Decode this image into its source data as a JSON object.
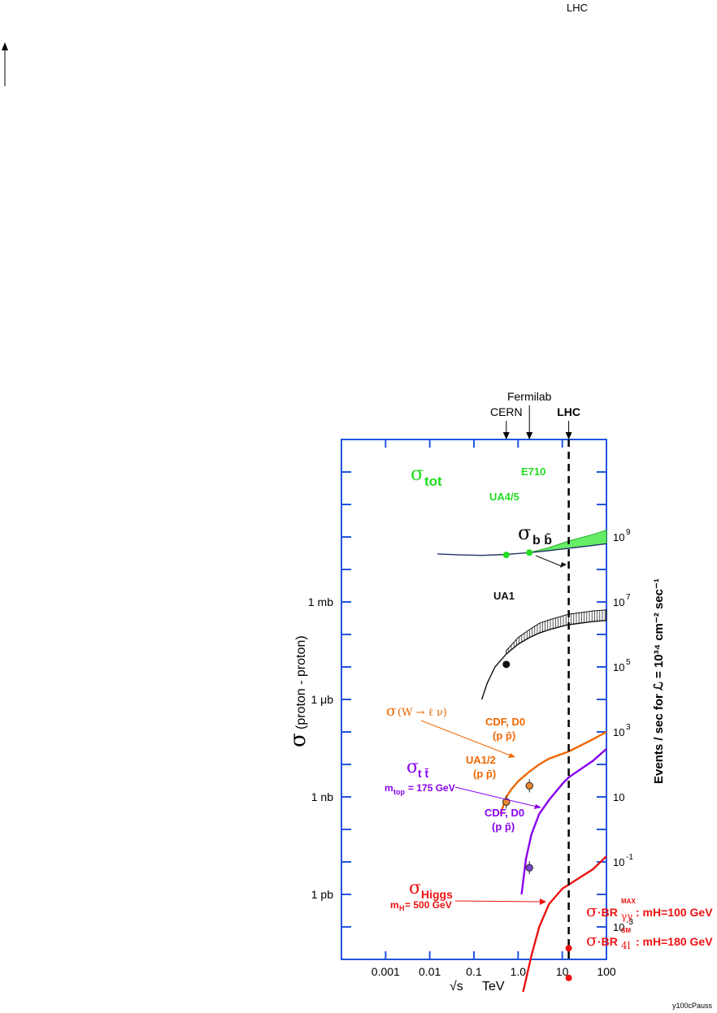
{
  "header_tag": "LHC",
  "footer_tag": "y100cPauss",
  "chart_data": {
    "type": "line",
    "x_scale": "log",
    "y_scale": "log",
    "xlabel": "√s   TeV",
    "xlabel_root": "√s",
    "xlabel_unit": "TeV",
    "ylabel_left": "σ (proton - proton)",
    "ylabel_left_sigma": "σ",
    "ylabel_left_rest": "(proton - proton)",
    "ylabel_right": "Events / sec for ℒ = 10³⁴ cm⁻² sec⁻¹",
    "xlim": [
      0.0001,
      100
    ],
    "ylim_events": [
      0.0001,
      1000000000000
    ],
    "x_ticks": [
      {
        "value": 0.001,
        "label": "0.001"
      },
      {
        "value": 0.01,
        "label": "0.01"
      },
      {
        "value": 0.1,
        "label": "0.1"
      },
      {
        "value": 1,
        "label": "1.0"
      },
      {
        "value": 10,
        "label": "10"
      },
      {
        "value": 100,
        "label": "100"
      }
    ],
    "left_ticks": [
      {
        "value": 10000000,
        "label": "1 mb"
      },
      {
        "value": 10000,
        "label": "1 μb"
      },
      {
        "value": 10,
        "label": "1 nb"
      },
      {
        "value": 0.01,
        "label": "1 pb"
      }
    ],
    "right_ticks": [
      {
        "value": 1000000000,
        "base": "10",
        "exp": "9"
      },
      {
        "value": 10000000,
        "base": "10",
        "exp": "7"
      },
      {
        "value": 100000,
        "base": "10",
        "exp": "5"
      },
      {
        "value": 1000,
        "base": "10",
        "exp": "3"
      },
      {
        "value": 10,
        "base": "10",
        "exp": ""
      },
      {
        "value": 0.1,
        "base": "10",
        "exp": "-1"
      },
      {
        "value": 0.001,
        "base": "10",
        "exp": "-3"
      }
    ],
    "machines": [
      {
        "label": "CERN",
        "x": 0.54
      },
      {
        "label": "Fermilab",
        "x": 1.8
      },
      {
        "label": "LHC",
        "x": 14
      }
    ],
    "lhc_x": 14,
    "series": [
      {
        "name": "σ_tot",
        "label_main": "σ",
        "label_sub": "tot",
        "color": "#22dd22",
        "points": [
          [
            0.015,
            300000000
          ],
          [
            0.05,
            280000000
          ],
          [
            0.15,
            270000000
          ],
          [
            0.54,
            290000000
          ],
          [
            1.8,
            330000000
          ],
          [
            5,
            380000000
          ],
          [
            14,
            450000000
          ],
          [
            50,
            550000000
          ],
          [
            100,
            620000000
          ]
        ],
        "band_upper": [
          [
            1.8,
            330000000
          ],
          [
            5,
            470000000
          ],
          [
            14,
            750000000
          ],
          [
            50,
            1200000000
          ],
          [
            100,
            1600000000
          ]
        ]
      },
      {
        "name": "σ_bb",
        "label_main": "σ",
        "label_sub": "b b̄",
        "color": "#111111",
        "points": [
          [
            0.15,
            10000
          ],
          [
            0.2,
            32000
          ],
          [
            0.3,
            100000
          ],
          [
            0.54,
            250000
          ],
          [
            1,
            500000
          ],
          [
            1.8,
            800000
          ],
          [
            3,
            1100000
          ],
          [
            5,
            1400000
          ],
          [
            10,
            1800000
          ],
          [
            14,
            2000000
          ],
          [
            50,
            2500000
          ],
          [
            100,
            2700000
          ]
        ],
        "band_upper": [
          [
            0.54,
            320000
          ],
          [
            1,
            800000
          ],
          [
            1.8,
            1400000
          ],
          [
            3,
            2200000
          ],
          [
            5,
            2800000
          ],
          [
            10,
            3700000
          ],
          [
            14,
            4200000
          ],
          [
            50,
            5300000
          ],
          [
            100,
            5700000
          ]
        ]
      },
      {
        "name": "σ(W → ℓν)",
        "label_main": "σ",
        "label_rest": "(W → ℓ ν)",
        "color": "#ee6600",
        "points": [
          [
            0.4,
            3
          ],
          [
            0.54,
            10
          ],
          [
            0.7,
            17
          ],
          [
            1,
            30
          ],
          [
            1.8,
            60
          ],
          [
            3,
            100
          ],
          [
            5,
            150
          ],
          [
            14,
            250
          ],
          [
            50,
            600
          ],
          [
            100,
            1000
          ]
        ]
      },
      {
        "name": "σ_tt",
        "label_main": "σ",
        "label_sub": "t t̄",
        "color": "#8800ee",
        "points": [
          [
            1.2,
            0.01
          ],
          [
            1.5,
            0.12
          ],
          [
            2,
            0.7
          ],
          [
            3,
            3
          ],
          [
            5,
            8
          ],
          [
            10,
            25
          ],
          [
            14,
            40
          ],
          [
            50,
            130
          ],
          [
            100,
            300
          ]
        ]
      },
      {
        "name": "σ_Higgs",
        "label_main": "σ",
        "label_sub": "Higgs",
        "color": "#ee1111",
        "points": [
          [
            1.3,
            1e-05
          ],
          [
            2,
            0.00013
          ],
          [
            3,
            0.001
          ],
          [
            5,
            0.005
          ],
          [
            10,
            0.015
          ],
          [
            14,
            0.02
          ],
          [
            50,
            0.06
          ],
          [
            100,
            0.15
          ]
        ]
      }
    ],
    "data_points": [
      {
        "label": "UA4/5",
        "x": 0.54,
        "y": 280000000,
        "color": "#22dd22"
      },
      {
        "label": "E710",
        "x": 1.8,
        "y": 330000000,
        "color": "#22dd22"
      },
      {
        "label": "UA1",
        "x": 0.54,
        "y": 120000,
        "color": "#111111"
      },
      {
        "label": "UA1/2 (p p̄)",
        "x": 0.54,
        "y": 7,
        "color": "#ee6600"
      },
      {
        "label": "CDF, D0 (p p̄)",
        "x": 1.8,
        "y": 22,
        "color": "#ee6600"
      },
      {
        "label": "CDF, D0 (p p̄)",
        "x": 1.8,
        "y": 0.066,
        "color": "#8800ee"
      },
      {
        "label": "σ·BR γγ^MAX : mH=100 GeV",
        "x": 14,
        "y": 0.00022,
        "color": "#ee1111"
      },
      {
        "label": "σ·BR 4l^SM : mH=180 GeV",
        "x": 14,
        "y": 2.7e-05,
        "color": "#ee1111"
      }
    ],
    "annotations": {
      "ua45": "UA4/5",
      "e710": "E710",
      "ua1": "UA1",
      "cdf_w_1": "CDF, D0",
      "cdf_w_2": "(p p̄)",
      "ua12_1": "UA1/2",
      "ua12_2": "(p p̄)",
      "mtop": "= 175 GeV",
      "mtop_m": "m",
      "mtop_sub": "top",
      "cdf_t_1": "CDF, D0",
      "cdf_t_2": "(p p̄)",
      "mh500_m": "m",
      "mh500_sub": "H",
      "mh500": "= 500 GeV",
      "br1_a": "σ",
      "br1_b": "·BR",
      "br1_sub": "γγ",
      "br1_sup": "MAX",
      "br1_c": ": mH=100 GeV",
      "br2_a": "σ",
      "br2_b": "·BR",
      "br2_sub": "4l",
      "br2_sup": "SM",
      "br2_c": ": mH=180 GeV"
    }
  }
}
